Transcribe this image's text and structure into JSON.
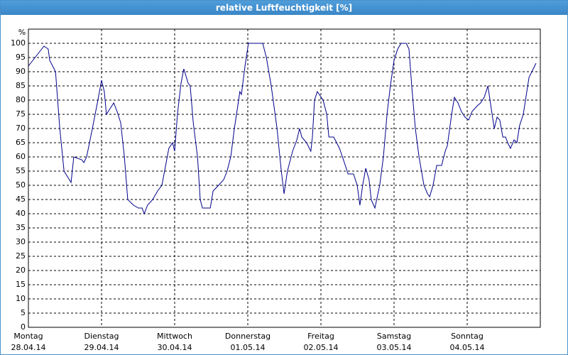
{
  "chart_data": {
    "type": "line",
    "title": "relative Luftfeuchtigkeit [%]",
    "y_unit": "%",
    "xlim": [
      0,
      168
    ],
    "ylim": [
      0,
      105
    ],
    "xticks": [
      {
        "value": 0,
        "label": "Montag"
      },
      {
        "value": 24,
        "label": "Dienstag"
      },
      {
        "value": 48,
        "label": "Mittwoch"
      },
      {
        "value": 72,
        "label": "Donnerstag"
      },
      {
        "value": 96,
        "label": "Freitag"
      },
      {
        "value": 120,
        "label": "Samstag"
      },
      {
        "value": 144,
        "label": "Sonntag"
      }
    ],
    "x_dates": [
      "28.04.14",
      "29.04.14",
      "30.04.14",
      "01.05.14",
      "02.05.14",
      "03.05.14",
      "04.05.14"
    ],
    "yticks": [
      0,
      5,
      10,
      15,
      20,
      25,
      30,
      35,
      40,
      45,
      50,
      55,
      60,
      65,
      70,
      75,
      80,
      85,
      90,
      95,
      100
    ],
    "grid": true,
    "series": [
      {
        "color": "#00008b",
        "x": [
          0,
          5.1,
          6.5,
          7.0,
          8.9,
          10.3,
          11.7,
          14.0,
          14.9,
          17.5,
          18.2,
          19.1,
          21.0,
          22.8,
          24.0,
          24.9,
          25.6,
          26.8,
          28.0,
          29.1,
          30.3,
          31.5,
          32.6,
          34.5,
          36.1,
          37.3,
          38.0,
          39.1,
          40.8,
          42.4,
          43.8,
          44.7,
          46.1,
          47.3,
          48.0,
          48.9,
          50.1,
          51.0,
          52.4,
          53.1,
          54.1,
          55.5,
          56.4,
          57.1,
          58.7,
          59.7,
          60.6,
          62.4,
          64.1,
          65.2,
          66.4,
          67.6,
          69.0,
          69.4,
          69.9,
          71.1,
          72.2,
          76.9,
          78.1,
          79.7,
          81.6,
          83.0,
          83.9,
          85.0,
          86.7,
          88.1,
          89.0,
          89.7,
          91.3,
          92.7,
          93.2,
          93.9,
          94.8,
          96.7,
          97.9,
          98.6,
          100.2,
          102.1,
          103.7,
          104.9,
          106.7,
          107.9,
          108.8,
          109.7,
          110.7,
          111.8,
          112.5,
          113.7,
          115.3,
          116.5,
          117.7,
          118.8,
          120.0,
          121.2,
          122.3,
          124.0,
          124.9,
          125.8,
          127.0,
          128.2,
          129.8,
          131.0,
          131.7,
          132.8,
          134.0,
          135.6,
          136.8,
          137.5,
          138.9,
          139.8,
          141.0,
          142.1,
          143.3,
          144.5,
          145.6,
          147.3,
          148.4,
          149.6,
          150.8,
          151.9,
          152.9,
          153.8,
          154.7,
          155.7,
          156.6,
          157.3,
          158.2,
          159.4,
          160.3,
          161.2,
          162.4,
          164.3,
          166.6
        ],
        "values": [
          92,
          99,
          98,
          94,
          90,
          70,
          55,
          51,
          60,
          59,
          58,
          60,
          70,
          80,
          87,
          83,
          75,
          77,
          79,
          76,
          72,
          60,
          45,
          43,
          42,
          42,
          40,
          43,
          45,
          48,
          50,
          55,
          63,
          65,
          62,
          75,
          86,
          91,
          86,
          85,
          72,
          60,
          45,
          42,
          42,
          42,
          48,
          50,
          52,
          55,
          60,
          70,
          80,
          83,
          82,
          92,
          100,
          100,
          95,
          85,
          70,
          55,
          47,
          55,
          62,
          66,
          70,
          67,
          65,
          62,
          67,
          80,
          83,
          80,
          75,
          67,
          67,
          63,
          58,
          54,
          54,
          50,
          43,
          50,
          56,
          52,
          45,
          42,
          50,
          60,
          75,
          85,
          94,
          98,
          100,
          100,
          98,
          85,
          70,
          60,
          50,
          47,
          46,
          50,
          57,
          57,
          62,
          64,
          75,
          81,
          79,
          76,
          74,
          73,
          76,
          78,
          79,
          81,
          85,
          77,
          70,
          74,
          73,
          67,
          67,
          65,
          63,
          66,
          65,
          71,
          75,
          88,
          93
        ]
      }
    ]
  }
}
